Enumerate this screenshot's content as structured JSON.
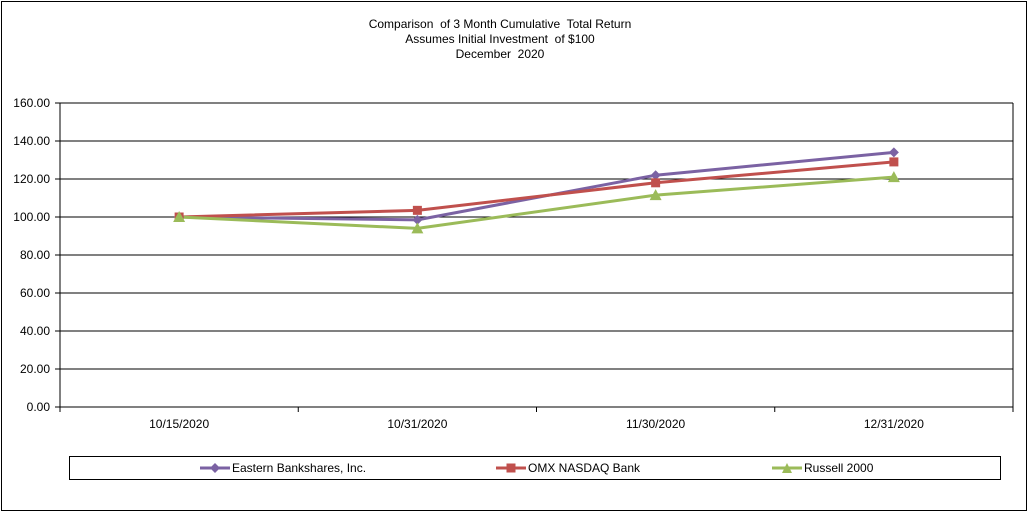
{
  "chart_data": {
    "type": "line",
    "title_lines": [
      "Comparison  of 3 Month Cumulative  Total Return",
      "Assumes Initial Investment  of $100",
      "December  2020"
    ],
    "categories": [
      "10/15/2020",
      "10/31/2020",
      "11/30/2020",
      "12/31/2020"
    ],
    "ylim": [
      0,
      160
    ],
    "yticks": [
      "0.00",
      "20.00",
      "40.00",
      "60.00",
      "80.00",
      "100.00",
      "120.00",
      "140.00",
      "160.00"
    ],
    "grid": "horizontal",
    "legend_position": "bottom",
    "series": [
      {
        "name": "Eastern Bankshares, Inc.",
        "values": [
          100.0,
          98.5,
          122.0,
          134.0
        ],
        "color": "#7b62a3",
        "marker": "diamond"
      },
      {
        "name": "OMX NASDAQ Bank",
        "values": [
          100.0,
          103.5,
          118.0,
          129.0
        ],
        "color": "#c0504d",
        "marker": "square"
      },
      {
        "name": "Russell 2000",
        "values": [
          100.0,
          94.0,
          111.5,
          121.0
        ],
        "color": "#9bbb59",
        "marker": "triangle"
      }
    ]
  }
}
